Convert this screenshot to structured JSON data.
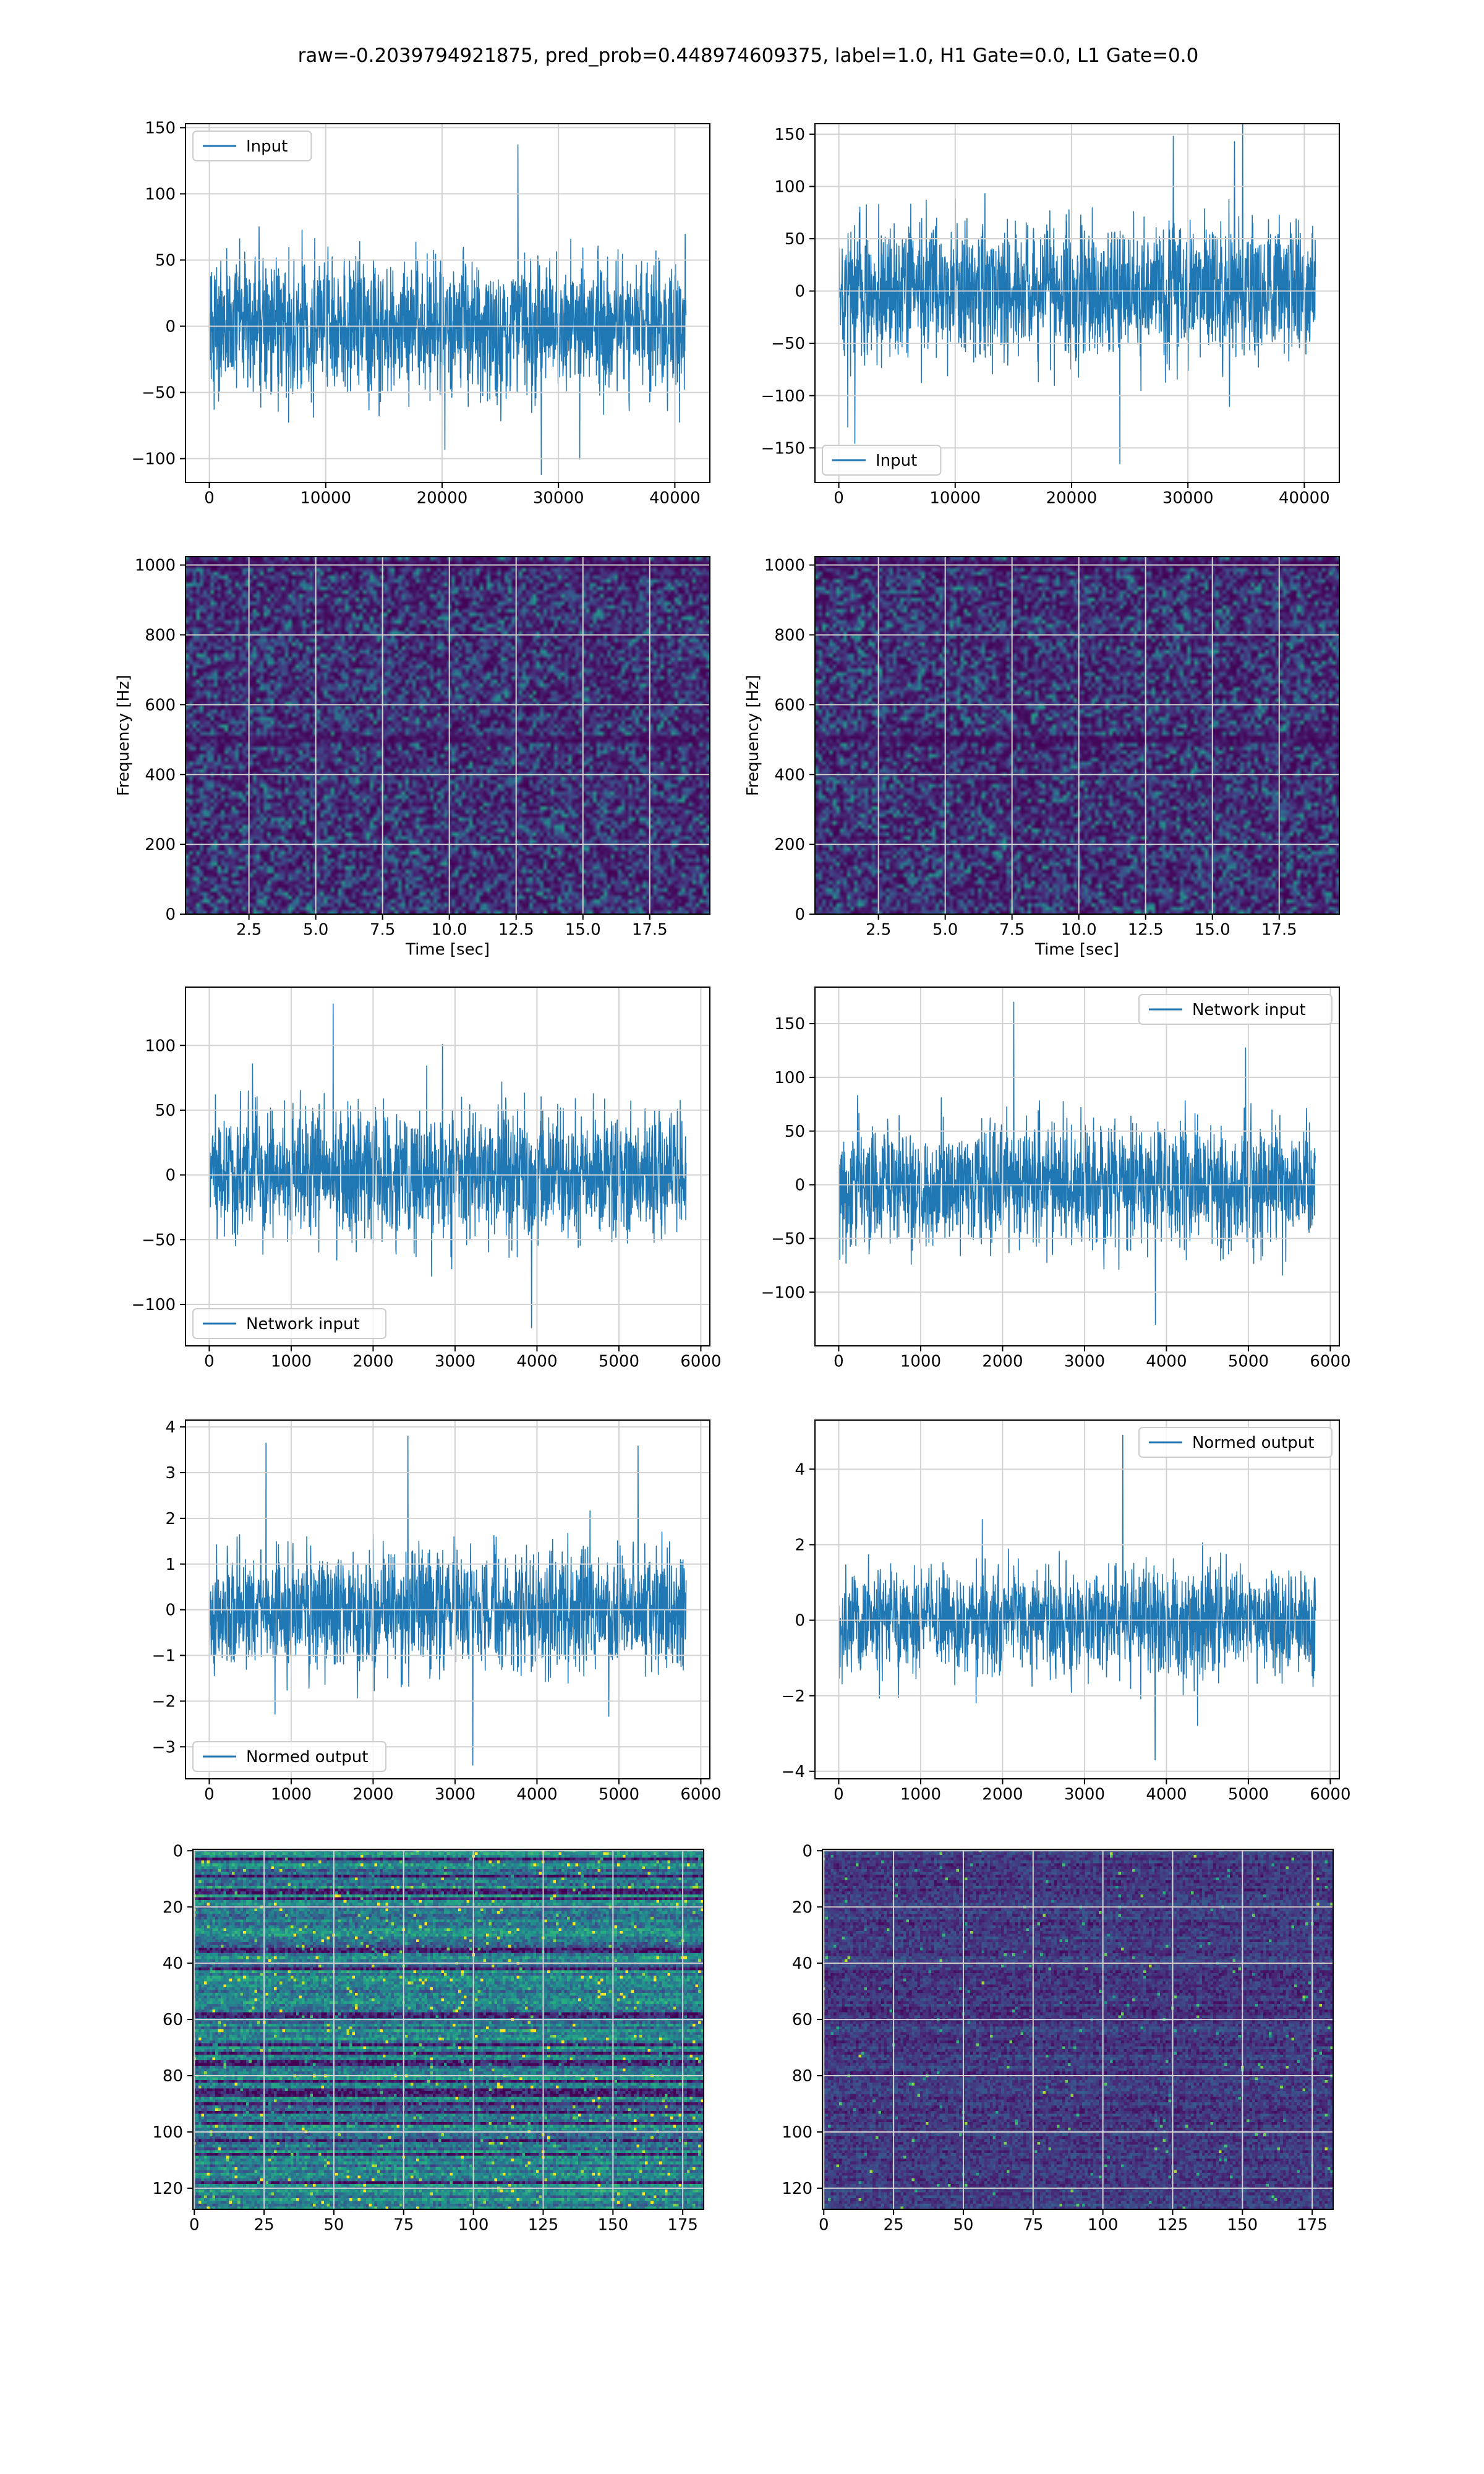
{
  "figure": {
    "suptitle": "raw=-0.2039794921875, pred_prob=0.448974609375, label=1.0, H1 Gate=0.0, L1 Gate=0.0",
    "colors": {
      "line": "#1f77b4",
      "grid": "#d2d2d2",
      "viridis_low": "#440154",
      "viridis_mid": "#21918c",
      "viridis_high": "#fde725"
    }
  },
  "chart_data": [
    {
      "id": "p1",
      "type": "line",
      "title": "",
      "xlabel": "",
      "ylabel": "",
      "legend": {
        "label": "Input",
        "placement": "upper-left"
      },
      "xlim": [
        -2048,
        43008
      ],
      "ylim": [
        -118,
        153
      ],
      "xticks": [
        0,
        10000,
        20000,
        30000,
        40000
      ],
      "xtick_labels": [
        "0",
        "10000",
        "20000",
        "30000",
        "40000"
      ],
      "yticks": [
        -100,
        -50,
        0,
        50,
        100,
        150
      ],
      "ytick_labels": [
        "−100",
        "−50",
        "0",
        "50",
        "100",
        "150"
      ],
      "x_range": [
        0,
        40960
      ],
      "envelope_mean": 0,
      "band": [
        -60,
        60
      ],
      "extremes": {
        "max": 137,
        "min": -112
      },
      "grid": true
    },
    {
      "id": "p2",
      "type": "line",
      "title": "",
      "xlabel": "",
      "ylabel": "",
      "legend": {
        "label": "Input",
        "placement": "lower-left"
      },
      "xlim": [
        -2048,
        43008
      ],
      "ylim": [
        -183,
        160
      ],
      "xticks": [
        0,
        10000,
        20000,
        30000,
        40000
      ],
      "xtick_labels": [
        "0",
        "10000",
        "20000",
        "30000",
        "40000"
      ],
      "yticks": [
        -150,
        -100,
        -50,
        0,
        50,
        100,
        150
      ],
      "ytick_labels": [
        "−150",
        "−100",
        "−50",
        "0",
        "50",
        "100",
        "150"
      ],
      "x_range": [
        0,
        40960
      ],
      "envelope_mean": 0,
      "band": [
        -75,
        75
      ],
      "extremes": {
        "max": 148,
        "min": -165
      },
      "grid": true
    },
    {
      "id": "p3",
      "type": "heatmap",
      "title": "",
      "xlabel": "Time [sec]",
      "ylabel": "Frequency [Hz]",
      "xlim": [
        0.125,
        19.75
      ],
      "ylim": [
        0,
        1024
      ],
      "xticks": [
        2.5,
        5.0,
        7.5,
        10.0,
        12.5,
        15.0,
        17.5
      ],
      "xtick_labels": [
        "2.5",
        "5.0",
        "7.5",
        "10.0",
        "12.5",
        "15.0",
        "17.5"
      ],
      "yticks": [
        0,
        200,
        400,
        600,
        800,
        1000
      ],
      "ytick_labels": [
        "0",
        "200",
        "400",
        "600",
        "800",
        "1000"
      ],
      "colormap": "viridis",
      "dark_band_hz": [
        500,
        1000
      ],
      "grid": true
    },
    {
      "id": "p4",
      "type": "heatmap",
      "title": "",
      "xlabel": "Time [sec]",
      "ylabel": "Frequency [Hz]",
      "xlim": [
        0.125,
        19.75
      ],
      "ylim": [
        0,
        1024
      ],
      "xticks": [
        2.5,
        5.0,
        7.5,
        10.0,
        12.5,
        15.0,
        17.5
      ],
      "xtick_labels": [
        "2.5",
        "5.0",
        "7.5",
        "10.0",
        "12.5",
        "15.0",
        "17.5"
      ],
      "yticks": [
        0,
        200,
        400,
        600,
        800,
        1000
      ],
      "ytick_labels": [
        "0",
        "200",
        "400",
        "600",
        "800",
        "1000"
      ],
      "colormap": "viridis",
      "dark_band_hz": [
        500,
        1000
      ],
      "grid": true
    },
    {
      "id": "p5",
      "type": "line",
      "title": "",
      "xlabel": "",
      "ylabel": "",
      "legend": {
        "label": "Network input",
        "placement": "lower-left"
      },
      "xlim": [
        -290,
        6110
      ],
      "ylim": [
        -132,
        145
      ],
      "xticks": [
        0,
        1000,
        2000,
        3000,
        4000,
        5000,
        6000
      ],
      "xtick_labels": [
        "0",
        "1000",
        "2000",
        "3000",
        "4000",
        "5000",
        "6000"
      ],
      "yticks": [
        -100,
        -50,
        0,
        50,
        100
      ],
      "ytick_labels": [
        "−100",
        "−50",
        "0",
        "50",
        "100"
      ],
      "x_range": [
        0,
        5820
      ],
      "envelope_mean": 0,
      "band": [
        -55,
        55
      ],
      "extremes": {
        "max": 132,
        "min": -118
      },
      "grid": true
    },
    {
      "id": "p6",
      "type": "line",
      "title": "",
      "xlabel": "",
      "ylabel": "",
      "legend": {
        "label": "Network input",
        "placement": "upper-right"
      },
      "xlim": [
        -290,
        6110
      ],
      "ylim": [
        -150,
        184
      ],
      "xticks": [
        0,
        1000,
        2000,
        3000,
        4000,
        5000,
        6000
      ],
      "xtick_labels": [
        "0",
        "1000",
        "2000",
        "3000",
        "4000",
        "5000",
        "6000"
      ],
      "yticks": [
        -100,
        -50,
        0,
        50,
        100,
        150
      ],
      "ytick_labels": [
        "−100",
        "−50",
        "0",
        "50",
        "100",
        "150"
      ],
      "x_range": [
        0,
        5820
      ],
      "envelope_mean": 0,
      "band": [
        -65,
        65
      ],
      "extremes": {
        "max": 170,
        "min": -130
      },
      "grid": true
    },
    {
      "id": "p7",
      "type": "line",
      "title": "",
      "xlabel": "",
      "ylabel": "",
      "legend": {
        "label": "Normed output",
        "placement": "lower-left"
      },
      "xlim": [
        -290,
        6110
      ],
      "ylim": [
        -3.7,
        4.15
      ],
      "xticks": [
        0,
        1000,
        2000,
        3000,
        4000,
        5000,
        6000
      ],
      "xtick_labels": [
        "0",
        "1000",
        "2000",
        "3000",
        "4000",
        "5000",
        "6000"
      ],
      "yticks": [
        -3,
        -2,
        -1,
        0,
        1,
        2,
        3,
        4
      ],
      "ytick_labels": [
        "−3",
        "−2",
        "−1",
        "0",
        "1",
        "2",
        "3",
        "4"
      ],
      "x_range": [
        0,
        5820
      ],
      "envelope_mean": 0,
      "band": [
        -1.5,
        1.5
      ],
      "extremes": {
        "max": 3.8,
        "min": -3.4
      },
      "grid": true
    },
    {
      "id": "p8",
      "type": "line",
      "title": "",
      "xlabel": "",
      "ylabel": "",
      "legend": {
        "label": "Normed output",
        "placement": "upper-right"
      },
      "xlim": [
        -290,
        6110
      ],
      "ylim": [
        -4.2,
        5.3
      ],
      "xticks": [
        0,
        1000,
        2000,
        3000,
        4000,
        5000,
        6000
      ],
      "xtick_labels": [
        "0",
        "1000",
        "2000",
        "3000",
        "4000",
        "5000",
        "6000"
      ],
      "yticks": [
        -4,
        -2,
        0,
        2,
        4
      ],
      "ytick_labels": [
        "−4",
        "−2",
        "0",
        "2",
        "4"
      ],
      "x_range": [
        0,
        5820
      ],
      "envelope_mean": 0,
      "band": [
        -1.6,
        1.6
      ],
      "extremes": {
        "max": 4.9,
        "min": -3.7
      },
      "grid": true
    },
    {
      "id": "p9",
      "type": "heatmap",
      "title": "",
      "xlabel": "",
      "ylabel": "",
      "xlim": [
        -0.5,
        182.5
      ],
      "ylim": [
        127.5,
        -0.5
      ],
      "xticks": [
        0,
        25,
        50,
        75,
        100,
        125,
        150,
        175
      ],
      "xtick_labels": [
        "0",
        "25",
        "50",
        "75",
        "100",
        "125",
        "150",
        "175"
      ],
      "yticks": [
        0,
        20,
        40,
        60,
        80,
        100,
        120
      ],
      "ytick_labels": [
        "0",
        "20",
        "40",
        "60",
        "80",
        "100",
        "120"
      ],
      "colormap": "viridis",
      "shape": [
        128,
        183
      ],
      "row_banded": true,
      "grid": true
    },
    {
      "id": "p10",
      "type": "heatmap",
      "title": "",
      "xlabel": "",
      "ylabel": "",
      "xlim": [
        -0.5,
        182.5
      ],
      "ylim": [
        127.5,
        -0.5
      ],
      "xticks": [
        0,
        25,
        50,
        75,
        100,
        125,
        150,
        175
      ],
      "xtick_labels": [
        "0",
        "25",
        "50",
        "75",
        "100",
        "125",
        "150",
        "175"
      ],
      "yticks": [
        0,
        20,
        40,
        60,
        80,
        100,
        120
      ],
      "ytick_labels": [
        "0",
        "20",
        "40",
        "60",
        "80",
        "100",
        "120"
      ],
      "colormap": "viridis",
      "shape": [
        128,
        183
      ],
      "row_banded": false,
      "grid": true
    }
  ]
}
